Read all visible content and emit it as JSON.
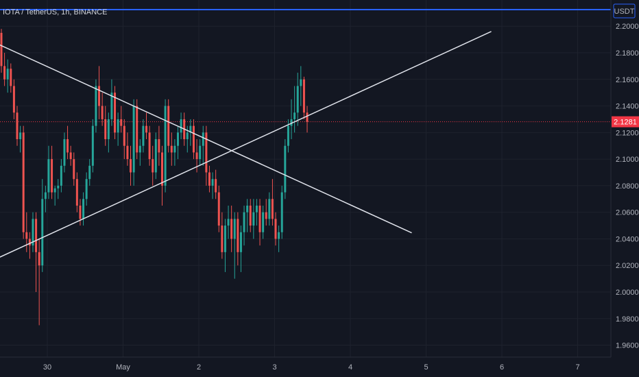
{
  "chart_data": {
    "type": "candlestick",
    "title": "IOTA / TetherUS, 1h, BINANCE",
    "currency": "USDT",
    "last_price": "2.1281",
    "ylim": [
      1.951,
      2.2125
    ],
    "y_ticks": [
      "2.2000",
      "2.1800",
      "2.1600",
      "2.1400",
      "2.1200",
      "2.1000",
      "2.0800",
      "2.0600",
      "2.0400",
      "2.0200",
      "2.0000",
      "1.9800",
      "1.9600"
    ],
    "x_ticks": [
      {
        "label": "30",
        "t": 0.5
      },
      {
        "label": "May",
        "t": 1.5
      },
      {
        "label": "2",
        "t": 2.5
      },
      {
        "label": "3",
        "t": 3.5
      },
      {
        "label": "4",
        "t": 4.5
      },
      {
        "label": "5",
        "t": 5.5
      },
      {
        "label": "6",
        "t": 6.5
      },
      {
        "label": "7",
        "t": 7.5
      }
    ],
    "horizontal_line": {
      "price": 2.2125
    },
    "trendlines": [
      {
        "name": "descending",
        "t1": -0.63,
        "p1": 2.199,
        "t2": 5.31,
        "p2": 2.0445
      },
      {
        "name": "ascending",
        "t1": -0.48,
        "p1": 2.017,
        "t2": 6.36,
        "p2": 2.196
      }
    ],
    "candles": [
      [
        2.195,
        2.198,
        2.165,
        2.17
      ],
      [
        2.17,
        2.18,
        2.155,
        2.16
      ],
      [
        2.16,
        2.175,
        2.15,
        2.168
      ],
      [
        2.168,
        2.172,
        2.15,
        2.155
      ],
      [
        2.155,
        2.16,
        2.13,
        2.135
      ],
      [
        2.135,
        2.14,
        2.11,
        2.115
      ],
      [
        2.115,
        2.125,
        2.105,
        2.12
      ],
      [
        2.12,
        2.125,
        2.04,
        2.045
      ],
      [
        2.045,
        2.06,
        2.03,
        2.04
      ],
      [
        2.04,
        2.045,
        2.025,
        2.035
      ],
      [
        2.035,
        2.06,
        2.03,
        2.055
      ],
      [
        2.055,
        2.06,
        2.0,
        2.03
      ],
      [
        2.03,
        2.04,
        1.975,
        2.02
      ],
      [
        2.02,
        2.085,
        2.015,
        2.07
      ],
      [
        2.07,
        2.08,
        2.06,
        2.075
      ],
      [
        2.075,
        2.11,
        2.07,
        2.1
      ],
      [
        2.1,
        2.11,
        2.07,
        2.075
      ],
      [
        2.075,
        2.08,
        2.065,
        2.078
      ],
      [
        2.078,
        2.085,
        2.07,
        2.08
      ],
      [
        2.08,
        2.1,
        2.075,
        2.095
      ],
      [
        2.095,
        2.12,
        2.09,
        2.115
      ],
      [
        2.115,
        2.125,
        2.1,
        2.105
      ],
      [
        2.105,
        2.11,
        2.095,
        2.1
      ],
      [
        2.1,
        2.105,
        2.08,
        2.085
      ],
      [
        2.085,
        2.09,
        2.06,
        2.065
      ],
      [
        2.065,
        2.07,
        2.05,
        2.055
      ],
      [
        2.055,
        2.075,
        2.05,
        2.07
      ],
      [
        2.07,
        2.09,
        2.065,
        2.085
      ],
      [
        2.085,
        2.1,
        2.08,
        2.095
      ],
      [
        2.095,
        2.13,
        2.09,
        2.125
      ],
      [
        2.125,
        2.16,
        2.12,
        2.155
      ],
      [
        2.155,
        2.17,
        2.13,
        2.14
      ],
      [
        2.14,
        2.15,
        2.125,
        2.13
      ],
      [
        2.13,
        2.14,
        2.11,
        2.115
      ],
      [
        2.115,
        2.135,
        2.105,
        2.13
      ],
      [
        2.13,
        2.16,
        2.125,
        2.15
      ],
      [
        2.15,
        2.155,
        2.115,
        2.12
      ],
      [
        2.12,
        2.135,
        2.11,
        2.13
      ],
      [
        2.13,
        2.14,
        2.12,
        2.125
      ],
      [
        2.125,
        2.13,
        2.1,
        2.11
      ],
      [
        2.11,
        2.12,
        2.095,
        2.1
      ],
      [
        2.1,
        2.11,
        2.08,
        2.09
      ],
      [
        2.09,
        2.145,
        2.08,
        2.14
      ],
      [
        2.14,
        2.145,
        2.1,
        2.105
      ],
      [
        2.105,
        2.115,
        2.095,
        2.11
      ],
      [
        2.11,
        2.13,
        2.105,
        2.125
      ],
      [
        2.125,
        2.135,
        2.115,
        2.12
      ],
      [
        2.12,
        2.125,
        2.095,
        2.1
      ],
      [
        2.1,
        2.11,
        2.08,
        2.09
      ],
      [
        2.09,
        2.12,
        2.085,
        2.115
      ],
      [
        2.115,
        2.125,
        2.095,
        2.105
      ],
      [
        2.105,
        2.11,
        2.065,
        2.08
      ],
      [
        2.08,
        2.145,
        2.075,
        2.14
      ],
      [
        2.14,
        2.145,
        2.105,
        2.11
      ],
      [
        2.11,
        2.12,
        2.095,
        2.105
      ],
      [
        2.105,
        2.115,
        2.095,
        2.11
      ],
      [
        2.11,
        2.125,
        2.1,
        2.12
      ],
      [
        2.12,
        2.135,
        2.115,
        2.13
      ],
      [
        2.13,
        2.135,
        2.11,
        2.115
      ],
      [
        2.115,
        2.125,
        2.105,
        2.12
      ],
      [
        2.12,
        2.13,
        2.11,
        2.125
      ],
      [
        2.125,
        2.13,
        2.1,
        2.105
      ],
      [
        2.105,
        2.115,
        2.09,
        2.1
      ],
      [
        2.1,
        2.115,
        2.095,
        2.11
      ],
      [
        2.11,
        2.125,
        2.095,
        2.12
      ],
      [
        2.12,
        2.125,
        2.08,
        2.09
      ],
      [
        2.09,
        2.095,
        2.075,
        2.08
      ],
      [
        2.08,
        2.09,
        2.07,
        2.085
      ],
      [
        2.085,
        2.092,
        2.07,
        2.075
      ],
      [
        2.075,
        2.08,
        2.045,
        2.05
      ],
      [
        2.05,
        2.06,
        2.025,
        2.03
      ],
      [
        2.03,
        2.055,
        2.015,
        2.05
      ],
      [
        2.05,
        2.065,
        2.04,
        2.055
      ],
      [
        2.055,
        2.065,
        2.03,
        2.04
      ],
      [
        2.04,
        2.06,
        2.01,
        2.055
      ],
      [
        2.055,
        2.06,
        2.02,
        2.03
      ],
      [
        2.03,
        2.05,
        2.015,
        2.045
      ],
      [
        2.045,
        2.065,
        2.035,
        2.06
      ],
      [
        2.06,
        2.07,
        2.045,
        2.065
      ],
      [
        2.065,
        2.07,
        2.045,
        2.05
      ],
      [
        2.05,
        2.07,
        2.04,
        2.06
      ],
      [
        2.06,
        2.07,
        2.05,
        2.065
      ],
      [
        2.065,
        2.07,
        2.035,
        2.045
      ],
      [
        2.045,
        2.065,
        2.04,
        2.06
      ],
      [
        2.06,
        2.07,
        2.05,
        2.055
      ],
      [
        2.055,
        2.075,
        2.05,
        2.07
      ],
      [
        2.07,
        2.085,
        2.05,
        2.055
      ],
      [
        2.055,
        2.06,
        2.035,
        2.04
      ],
      [
        2.04,
        2.05,
        2.03,
        2.045
      ],
      [
        2.045,
        2.08,
        2.04,
        2.075
      ],
      [
        2.075,
        2.115,
        2.07,
        2.11
      ],
      [
        2.11,
        2.13,
        2.105,
        2.125
      ],
      [
        2.125,
        2.145,
        2.115,
        2.13
      ],
      [
        2.13,
        2.155,
        2.12,
        2.135
      ],
      [
        2.135,
        2.165,
        2.125,
        2.155
      ],
      [
        2.155,
        2.17,
        2.14,
        2.16
      ],
      [
        2.16,
        2.162,
        2.13,
        2.135
      ],
      [
        2.135,
        2.14,
        2.12,
        2.128
      ]
    ]
  }
}
